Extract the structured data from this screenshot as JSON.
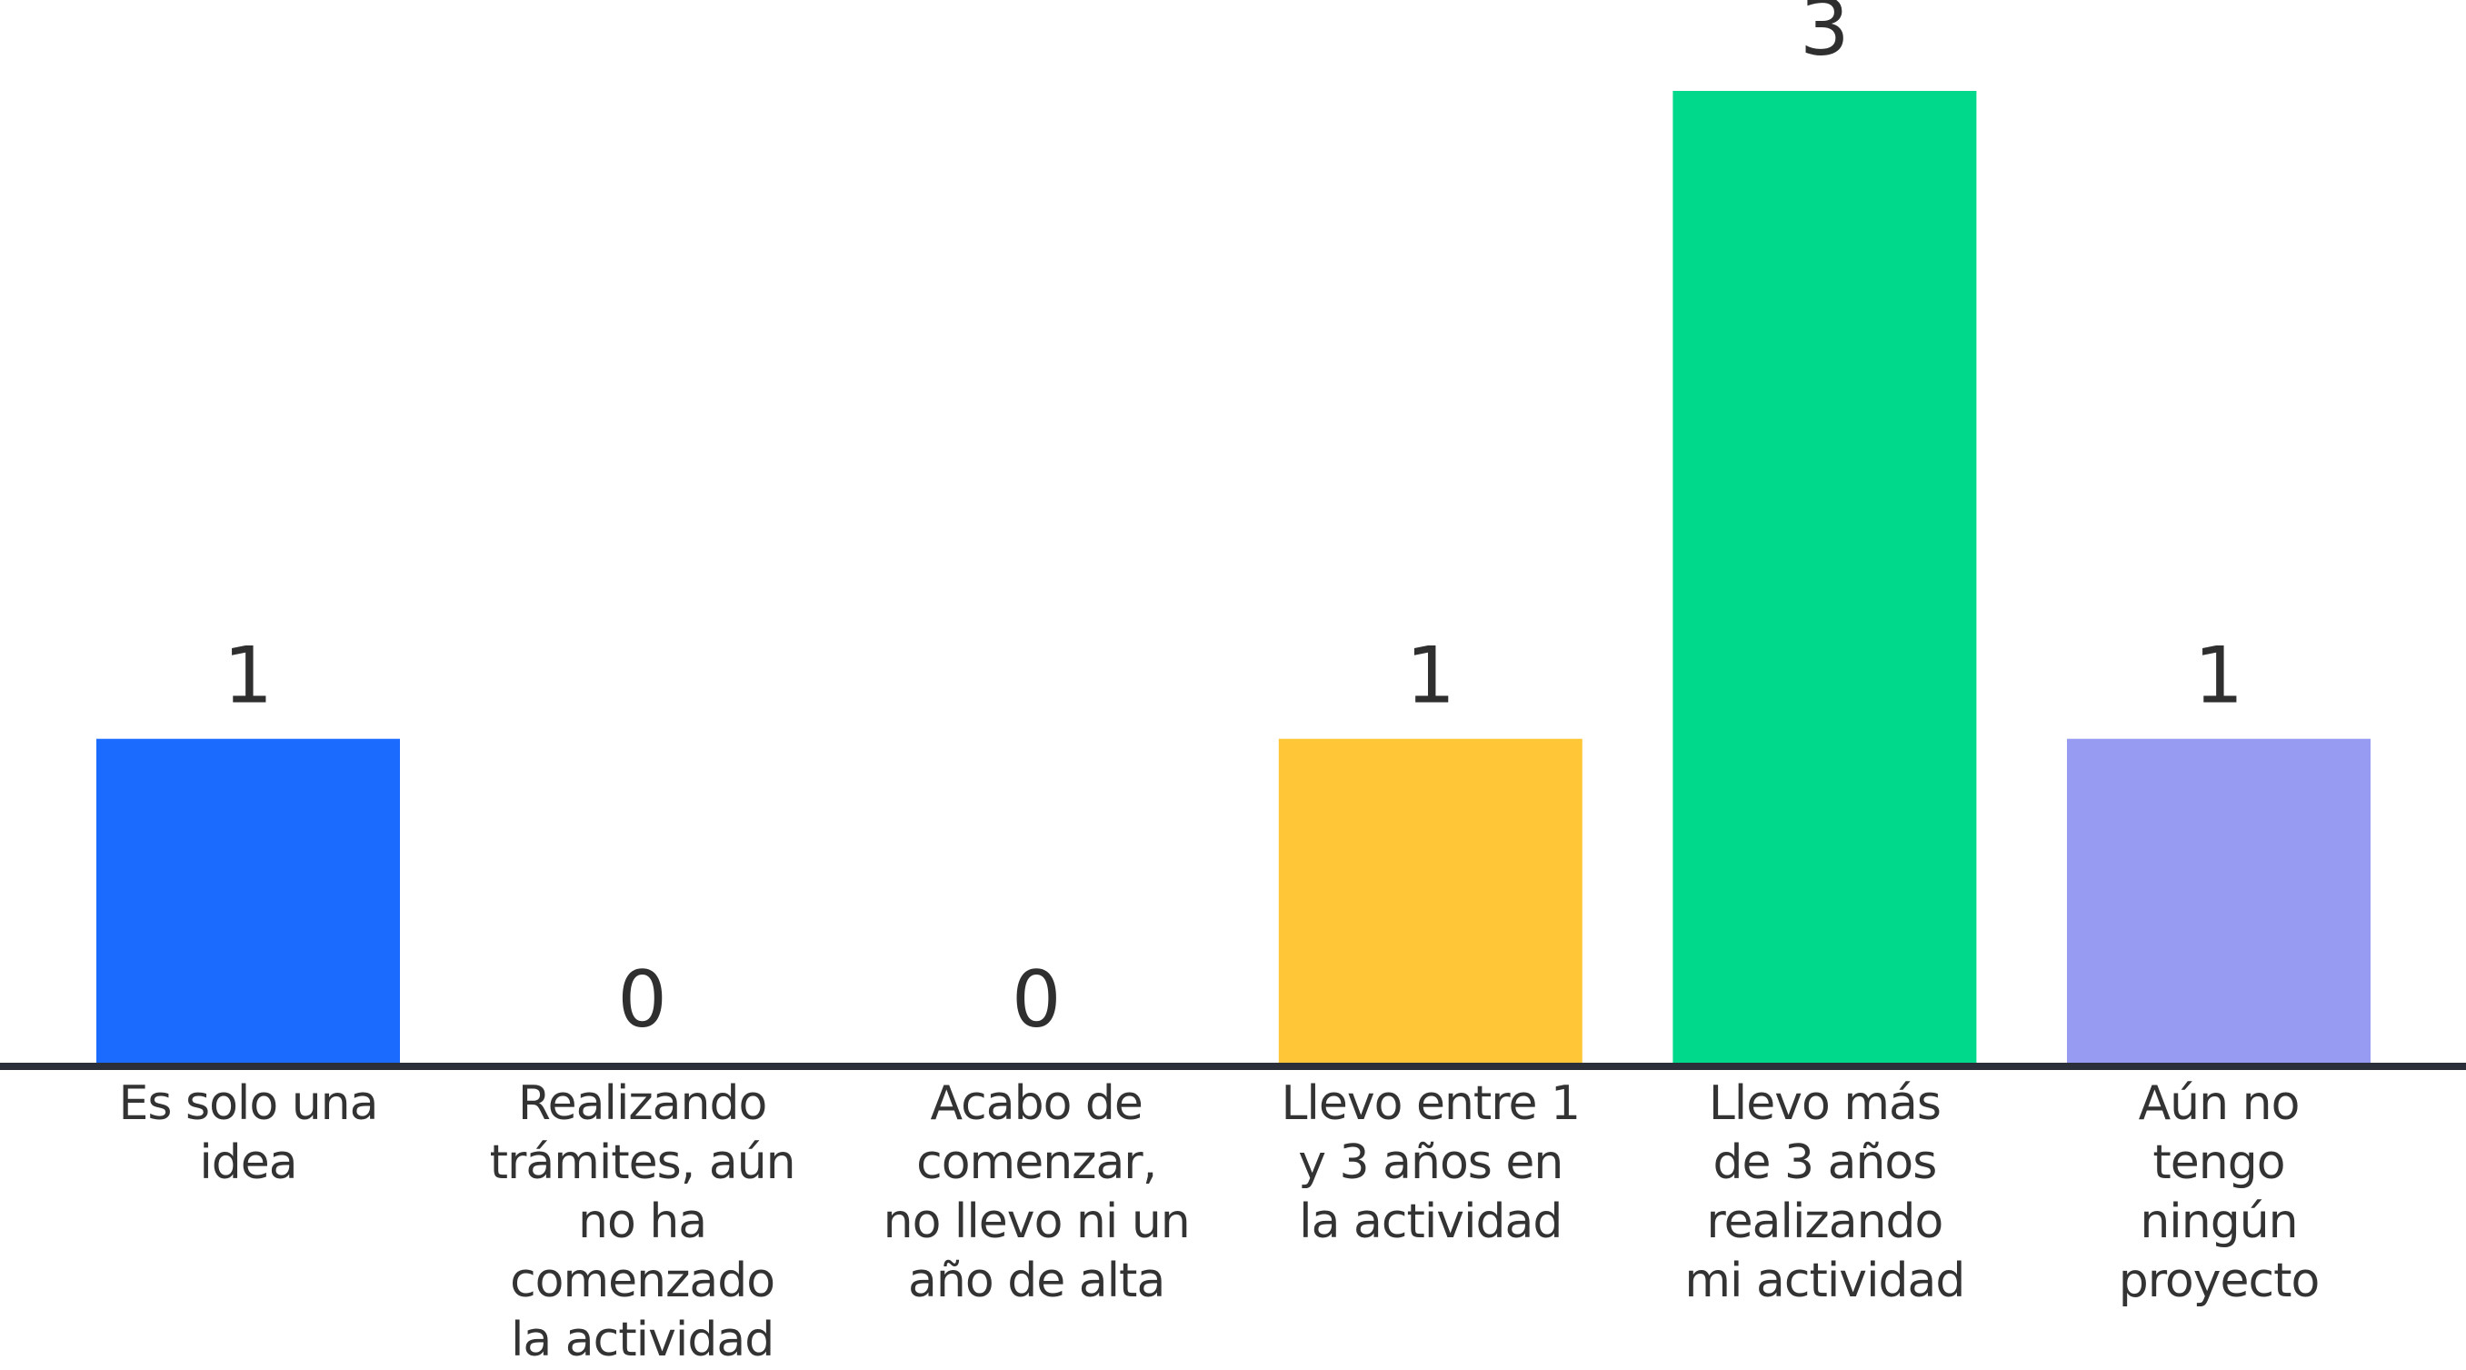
{
  "chart_data": {
    "type": "bar",
    "categories": [
      [
        "Es solo una",
        "idea"
      ],
      [
        "Realizando",
        "trámites, aún",
        "no ha",
        "comenzado",
        "la actividad"
      ],
      [
        "Acabo de",
        "comenzar,",
        "no llevo ni un",
        "año de alta"
      ],
      [
        "Llevo entre 1",
        "y 3 años en",
        "la actividad"
      ],
      [
        "Llevo más",
        "de 3 años",
        "realizando",
        "mi actividad"
      ],
      [
        "Aún no",
        "tengo",
        "ningún",
        "proyecto"
      ]
    ],
    "values": [
      1,
      0,
      0,
      1,
      3,
      1
    ],
    "data_labels": [
      "1",
      "0",
      "0",
      "1",
      "3",
      "1"
    ],
    "colors": [
      "#1b6bff",
      "#1b6bff",
      "#1b6bff",
      "#ffc638",
      "#00d98b",
      "#979bf2"
    ],
    "ylim": [
      0,
      3
    ],
    "grid": false,
    "legend": "none"
  }
}
